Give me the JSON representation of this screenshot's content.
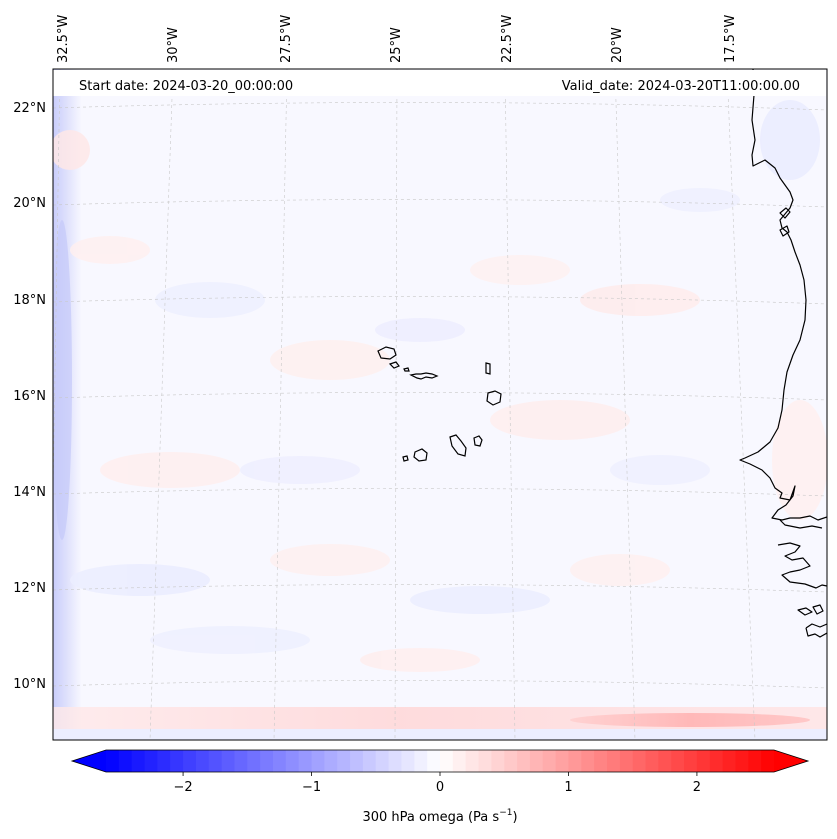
{
  "header": {
    "start_date": "Start date: 2024-03-20_00:00:00",
    "valid_date": "Valid_date: 2024-03-20T11:00:00.00"
  },
  "map": {
    "variable": "300 hPa omega",
    "units": "Pa s",
    "units_exponent": "−1",
    "lon_labels": [
      "32.5°W",
      "30°W",
      "27.5°W",
      "25°W",
      "22.5°W",
      "20°W",
      "17.5°W"
    ],
    "lat_labels": [
      "22°N",
      "20°N",
      "18°N",
      "16°N",
      "14°N",
      "12°N",
      "10°N"
    ],
    "features": [
      "Cape Verde islands",
      "West African coastline"
    ]
  },
  "colorbar": {
    "min": -2.6,
    "max": 2.6,
    "ticks": [
      "−2",
      "−1",
      "0",
      "1",
      "2"
    ],
    "tick_values": [
      -2,
      -1,
      0,
      1,
      2
    ],
    "colormap": "bwr",
    "extend": "both",
    "color_low": "#0000ff",
    "color_mid": "#ffffff",
    "color_high": "#ff0000"
  }
}
